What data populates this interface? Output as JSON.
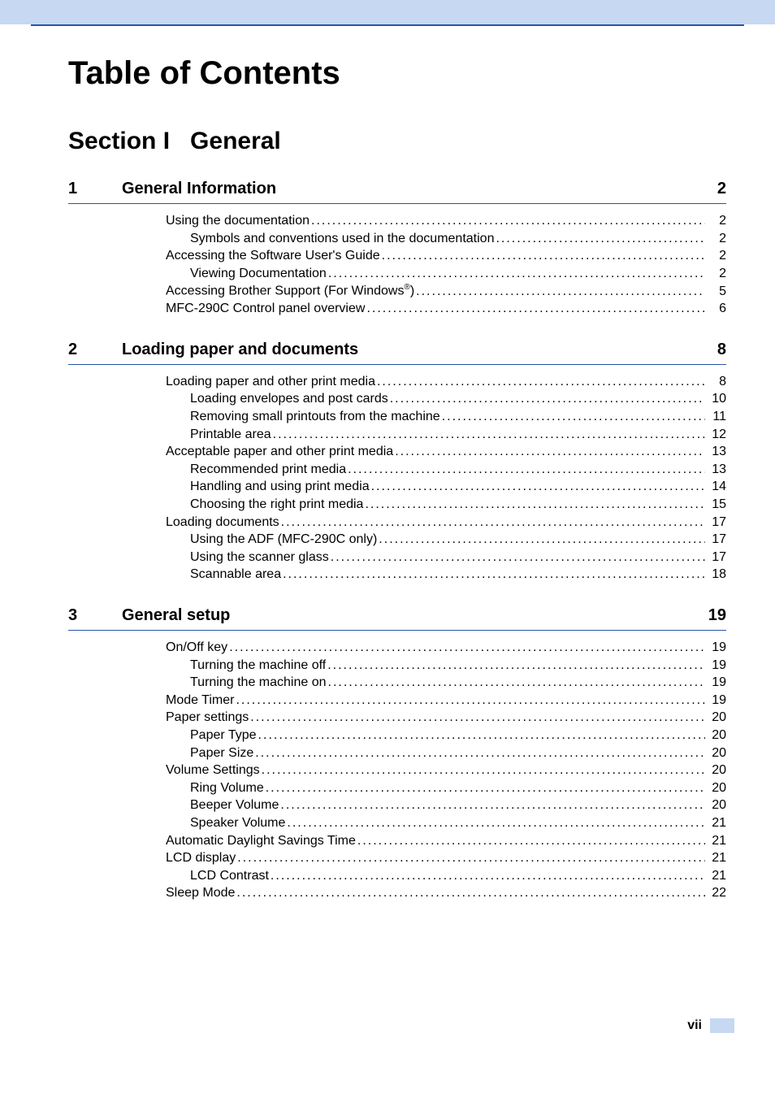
{
  "colors": {
    "header_bar": "#c6d8f2",
    "rule": "#2854a8",
    "text": "#000000",
    "background": "#ffffff"
  },
  "typography": {
    "title_fontsize": 40,
    "section_fontsize": 30,
    "chapter_fontsize": 20,
    "entry_fontsize": 16,
    "font_family": "Arial, Helvetica, sans-serif"
  },
  "title": "Table of Contents",
  "section_heading": {
    "prefix": "Section I",
    "title": "General"
  },
  "chapters": [
    {
      "number": "1",
      "title": "General Information",
      "page": "2",
      "entries": [
        {
          "label": "Using the documentation",
          "page": "2",
          "level": 1
        },
        {
          "label": "Symbols and conventions used in the documentation ",
          "page": "2",
          "level": 2
        },
        {
          "label": "Accessing the Software User's Guide ",
          "page": "2",
          "level": 1
        },
        {
          "label": "Viewing Documentation",
          "page": "2",
          "level": 2
        },
        {
          "label_html": "Accessing Brother Support (For Windows<sup>®</sup>) ",
          "page": "5",
          "level": 1
        },
        {
          "label": "MFC-290C Control panel overview",
          "page": "6",
          "level": 1
        }
      ]
    },
    {
      "number": "2",
      "title": "Loading paper and documents",
      "page": "8",
      "entries": [
        {
          "label": "Loading paper and other print media",
          "page": "8",
          "level": 1
        },
        {
          "label": "Loading envelopes and post cards",
          "page": "10",
          "level": 2
        },
        {
          "label": "Removing small printouts from the machine ",
          "page": "11",
          "level": 2
        },
        {
          "label": "Printable area ",
          "page": "12",
          "level": 2
        },
        {
          "label": "Acceptable paper and other print media",
          "page": "13",
          "level": 1
        },
        {
          "label": "Recommended print media ",
          "page": "13",
          "level": 2
        },
        {
          "label": "Handling and using print media",
          "page": "14",
          "level": 2
        },
        {
          "label": "Choosing the right print media",
          "page": "15",
          "level": 2
        },
        {
          "label": "Loading documents ",
          "page": "17",
          "level": 1
        },
        {
          "label": "Using the ADF (MFC-290C only)",
          "page": "17",
          "level": 2
        },
        {
          "label": "Using the scanner glass ",
          "page": "17",
          "level": 2
        },
        {
          "label": "Scannable area ",
          "page": "18",
          "level": 2
        }
      ]
    },
    {
      "number": "3",
      "title": "General setup",
      "page": "19",
      "entries": [
        {
          "label": "On/Off key ",
          "page": "19",
          "level": 1
        },
        {
          "label": "Turning the machine off",
          "page": "19",
          "level": 2
        },
        {
          "label": "Turning the machine on",
          "page": "19",
          "level": 2
        },
        {
          "label": "Mode Timer",
          "page": "19",
          "level": 1
        },
        {
          "label": "Paper settings",
          "page": "20",
          "level": 1
        },
        {
          "label": "Paper Type",
          "page": "20",
          "level": 2
        },
        {
          "label": "Paper Size",
          "page": "20",
          "level": 2
        },
        {
          "label": "Volume Settings",
          "page": "20",
          "level": 1
        },
        {
          "label": "Ring Volume",
          "page": "20",
          "level": 2
        },
        {
          "label": "Beeper Volume",
          "page": "20",
          "level": 2
        },
        {
          "label": "Speaker Volume",
          "page": "21",
          "level": 2
        },
        {
          "label": "Automatic Daylight Savings Time",
          "page": "21",
          "level": 1
        },
        {
          "label": "LCD display ",
          "page": "21",
          "level": 1
        },
        {
          "label": "LCD Contrast",
          "page": "21",
          "level": 2
        },
        {
          "label": "Sleep Mode ",
          "page": "22",
          "level": 1
        }
      ]
    }
  ],
  "footer": {
    "page_number": "vii"
  }
}
